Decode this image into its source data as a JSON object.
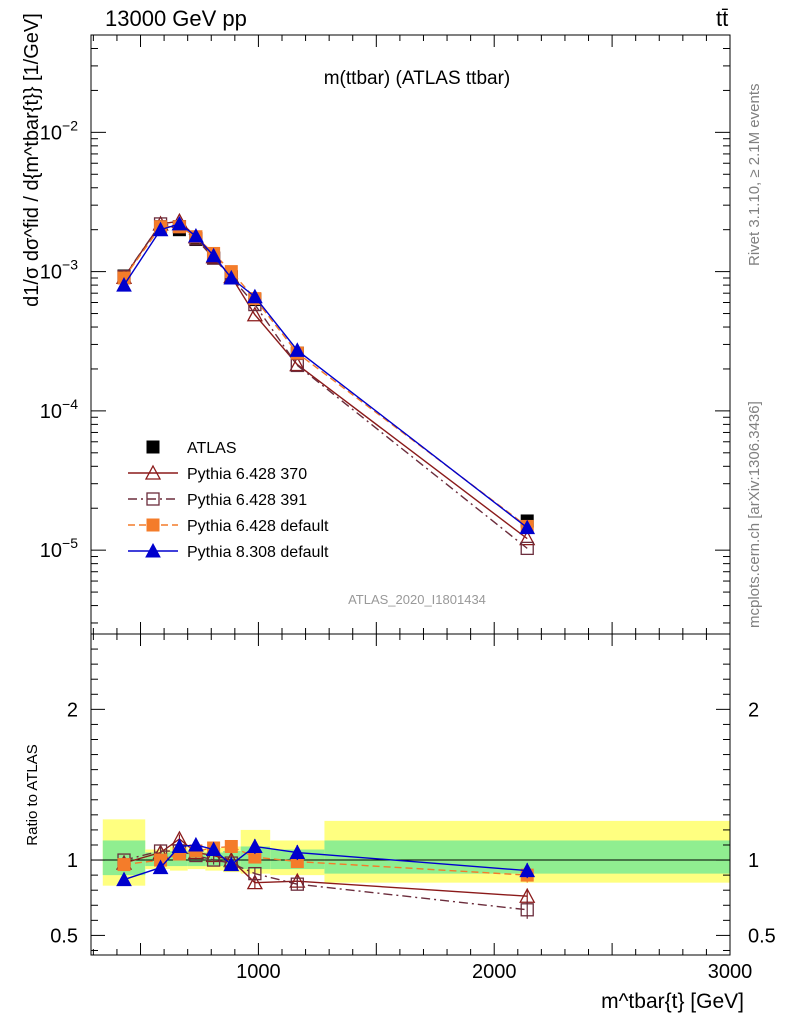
{
  "header": {
    "left": "13000 GeV pp",
    "right": "tt̄"
  },
  "side_labels": {
    "upper": "Rivet 3.1.10, ≥ 2.1M events",
    "lower": "mcplots.cern.ch [arXiv:1306.3436]"
  },
  "chart_data": [
    {
      "type": "scatter",
      "title": "m(ttbar) (ATLAS ttbar)",
      "watermark": "ATLAS_2020_I1801434",
      "ylabel": "d1/σ dσ^fid / d{m^tbar{t}} [1/GeV]",
      "yscale": "log",
      "xlim": [
        290,
        3000
      ],
      "ylim": [
        2.5e-06,
        0.05
      ],
      "x": [
        430,
        585,
        665,
        735,
        810,
        885,
        985,
        1165,
        2140
      ],
      "series": [
        {
          "name": "ATLAS",
          "color": "#000000",
          "marker": "filled-square",
          "line": "none",
          "values": [
            0.00093,
            0.0021,
            0.002,
            0.0017,
            0.00125,
            0.00092,
            0.00063,
            0.00026,
            1.62e-05
          ]
        },
        {
          "name": "Pythia 6.428 370",
          "color": "#8b1a1a",
          "marker": "open-triangle",
          "line": "solid",
          "values": [
            0.00091,
            0.0022,
            0.0023,
            0.00178,
            0.00128,
            0.00092,
            0.00049,
            0.000215,
            1.21e-05
          ]
        },
        {
          "name": "Pythia 6.428 391",
          "color": "#6b2d3c",
          "marker": "open-square",
          "line": "dash-dot",
          "values": [
            0.00092,
            0.0022,
            0.0021,
            0.00172,
            0.00125,
            0.00091,
            0.00058,
            0.000212,
            1.03e-05
          ]
        },
        {
          "name": "Pythia 6.428 default",
          "color": "#f47c2a",
          "marker": "filled-square",
          "line": "dashed",
          "values": [
            0.0009,
            0.0021,
            0.0021,
            0.00178,
            0.00135,
            0.001,
            0.00064,
            0.00026,
            1.48e-05
          ]
        },
        {
          "name": "Pythia 8.308 default",
          "color": "#0000cd",
          "marker": "filled-triangle",
          "line": "solid",
          "values": [
            0.0008,
            0.002,
            0.0022,
            0.0018,
            0.0013,
            0.0009,
            0.00066,
            0.000272,
            1.45e-05
          ]
        }
      ],
      "y_ticks": [
        {
          "value": 1e-05,
          "base": "10",
          "exp": "−5"
        },
        {
          "value": 0.0001,
          "base": "10",
          "exp": "−4"
        },
        {
          "value": 0.001,
          "base": "10",
          "exp": "−3"
        },
        {
          "value": 0.01,
          "base": "10",
          "exp": "−2"
        }
      ],
      "legend_position": "lower-left"
    },
    {
      "type": "line",
      "ylabel": "Ratio to ATLAS",
      "xlabel": "m^tbar{t} [GeV]",
      "xlim": [
        290,
        3000
      ],
      "ylim": [
        0.37,
        2.5
      ],
      "x_ticks": [
        "1000",
        "2000",
        "3000"
      ],
      "y_ticks": [
        "0.5",
        "1",
        "2"
      ],
      "bands": [
        {
          "x0": 340,
          "x1": 520,
          "outer": [
            0.83,
            1.27
          ],
          "inner": [
            0.9,
            1.13
          ]
        },
        {
          "x0": 520,
          "x1": 625,
          "outer": [
            0.94,
            1.07
          ],
          "inner": [
            0.96,
            1.05
          ]
        },
        {
          "x0": 625,
          "x1": 700,
          "outer": [
            0.93,
            1.09
          ],
          "inner": [
            0.96,
            1.06
          ]
        },
        {
          "x0": 700,
          "x1": 775,
          "outer": [
            0.94,
            1.07
          ],
          "inner": [
            0.96,
            1.05
          ]
        },
        {
          "x0": 775,
          "x1": 850,
          "outer": [
            0.93,
            1.08
          ],
          "inner": [
            0.96,
            1.05
          ]
        },
        {
          "x0": 850,
          "x1": 925,
          "outer": [
            0.92,
            1.09
          ],
          "inner": [
            0.95,
            1.06
          ]
        },
        {
          "x0": 925,
          "x1": 1050,
          "outer": [
            0.91,
            1.2
          ],
          "inner": [
            0.94,
            1.09
          ]
        },
        {
          "x0": 1050,
          "x1": 1280,
          "outer": [
            0.9,
            1.13
          ],
          "inner": [
            0.94,
            1.07
          ]
        },
        {
          "x0": 1280,
          "x1": 3000,
          "outer": [
            0.85,
            1.26
          ],
          "inner": [
            0.91,
            1.13
          ]
        }
      ],
      "series": [
        {
          "name": "Pythia 6.428 370",
          "values": [
            0.98,
            1.05,
            1.14,
            1.05,
            1.03,
            1.0,
            0.85,
            0.86,
            0.76
          ],
          "err": [
            0.03,
            0.03,
            0.03,
            0.03,
            0.03,
            0.04,
            0.04,
            0.04,
            0.05
          ]
        },
        {
          "name": "Pythia 6.428 391",
          "values": [
            1.0,
            1.06,
            1.06,
            1.03,
            1.0,
            0.98,
            0.91,
            0.84,
            0.67
          ],
          "err": [
            0.03,
            0.03,
            0.03,
            0.03,
            0.03,
            0.04,
            0.04,
            0.04,
            0.06
          ]
        },
        {
          "name": "Pythia 6.428 default",
          "values": [
            0.97,
            1.0,
            1.04,
            1.06,
            1.08,
            1.09,
            1.02,
            0.99,
            0.9
          ],
          "err": [
            0.03,
            0.03,
            0.03,
            0.03,
            0.03,
            0.04,
            0.04,
            0.04,
            0.05
          ]
        },
        {
          "name": "Pythia 8.308 default",
          "values": [
            0.87,
            0.95,
            1.09,
            1.1,
            1.07,
            0.97,
            1.09,
            1.05,
            0.93
          ],
          "err": [
            0.03,
            0.03,
            0.03,
            0.03,
            0.03,
            0.04,
            0.05,
            0.05,
            0.05
          ]
        }
      ]
    }
  ]
}
